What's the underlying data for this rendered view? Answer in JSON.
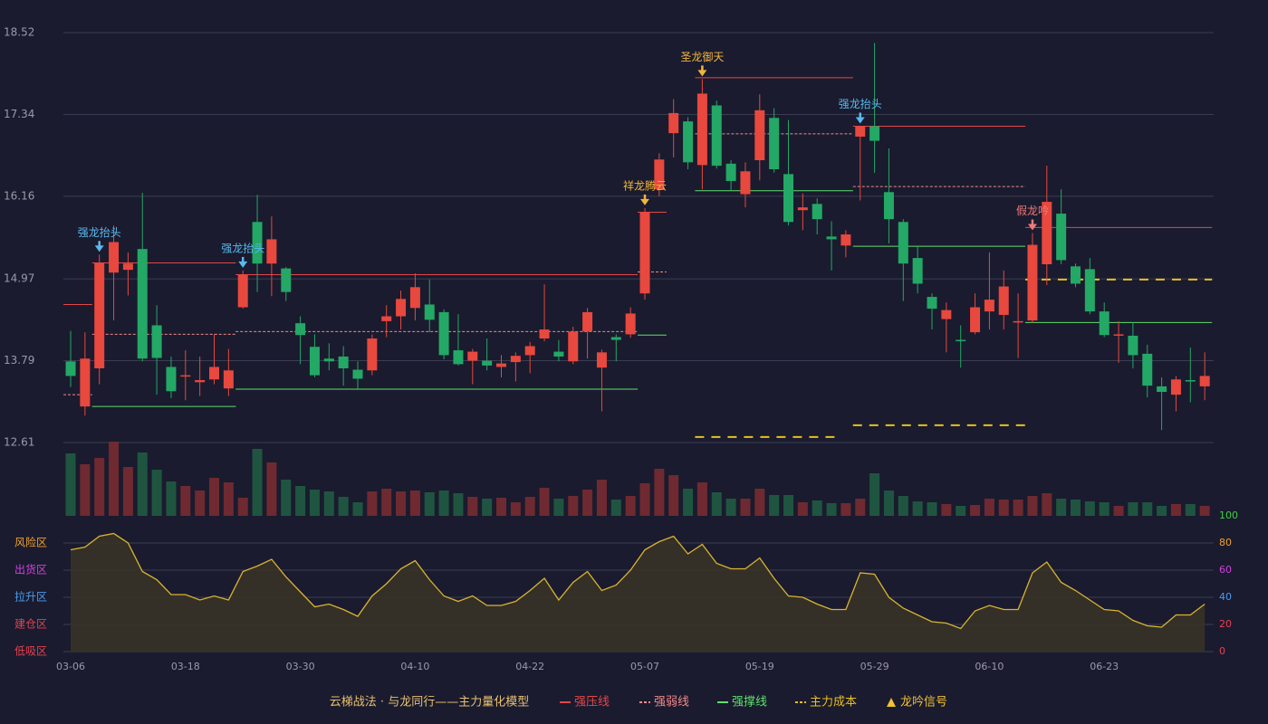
{
  "chart_data": [
    {
      "type": "candlestick",
      "x": [
        "03-06",
        null,
        null,
        null,
        null,
        null,
        null,
        null,
        "03-18",
        null,
        null,
        null,
        null,
        null,
        null,
        null,
        "03-30",
        null,
        null,
        null,
        null,
        null,
        null,
        null,
        "04-10",
        null,
        null,
        null,
        null,
        null,
        null,
        null,
        "04-22",
        null,
        null,
        null,
        null,
        null,
        null,
        null,
        "05-07",
        null,
        null,
        null,
        null,
        null,
        null,
        null,
        "05-19",
        null,
        null,
        null,
        null,
        null,
        null,
        null,
        "05-29",
        null,
        null,
        null,
        null,
        null,
        null,
        null,
        "06-10",
        null,
        null,
        null,
        null,
        null,
        null,
        null,
        "06-23",
        null,
        null,
        null,
        null,
        null,
        null,
        null
      ],
      "open": [
        13.78,
        13.13,
        13.68,
        15.06,
        15.1,
        15.4,
        14.3,
        13.7,
        13.57,
        13.48,
        13.52,
        13.39,
        14.56,
        15.79,
        15.19,
        15.12,
        14.33,
        13.99,
        13.82,
        13.85,
        13.66,
        13.65,
        14.36,
        14.43,
        14.55,
        14.6,
        14.49,
        13.94,
        13.79,
        13.79,
        13.7,
        13.77,
        13.87,
        14.11,
        13.92,
        13.78,
        14.21,
        13.69,
        14.13,
        14.17,
        14.76,
        16.26,
        17.07,
        17.24,
        16.61,
        17.47,
        16.63,
        16.19,
        16.68,
        17.29,
        16.48,
        15.96,
        16.05,
        15.58,
        15.45,
        17.02,
        17.17,
        16.22,
        15.79,
        15.27,
        14.71,
        14.39,
        14.09,
        14.2,
        14.5,
        14.45,
        14.34,
        14.37,
        15.18,
        15.91,
        15.15,
        15.11,
        14.5,
        14.16,
        14.15,
        13.89,
        13.42,
        13.3,
        13.51,
        13.42
      ],
      "high": [
        14.22,
        14.2,
        15.32,
        15.74,
        15.35,
        16.21,
        14.59,
        13.85,
        13.94,
        13.85,
        14.17,
        13.96,
        15.09,
        16.18,
        15.87,
        15.14,
        14.43,
        14.17,
        14.04,
        14.0,
        13.78,
        14.17,
        14.59,
        14.8,
        15.05,
        14.96,
        14.53,
        14.46,
        13.96,
        14.11,
        13.87,
        13.91,
        14.06,
        14.89,
        14.09,
        14.28,
        14.55,
        13.95,
        14.17,
        14.56,
        15.99,
        16.78,
        17.56,
        17.3,
        17.85,
        17.54,
        16.68,
        16.65,
        17.63,
        17.43,
        17.26,
        16.2,
        16.13,
        15.8,
        15.67,
        17.17,
        18.37,
        16.85,
        15.83,
        15.45,
        14.76,
        14.63,
        14.3,
        14.76,
        15.35,
        15.09,
        14.76,
        15.63,
        16.6,
        16.26,
        15.19,
        15.27,
        14.63,
        14.36,
        14.34,
        14.02,
        13.55,
        13.57,
        13.98,
        13.91
      ],
      "low": [
        13.41,
        13.0,
        13.45,
        14.37,
        14.73,
        13.78,
        13.3,
        13.25,
        13.22,
        13.28,
        13.45,
        13.28,
        14.54,
        14.78,
        14.72,
        14.65,
        13.74,
        13.55,
        13.65,
        13.43,
        13.39,
        13.58,
        14.13,
        14.24,
        14.37,
        14.2,
        13.81,
        13.72,
        13.45,
        13.65,
        13.55,
        13.49,
        13.61,
        14.07,
        13.78,
        13.74,
        13.82,
        13.06,
        13.78,
        14.12,
        14.67,
        16.16,
        16.72,
        16.55,
        16.26,
        16.56,
        16.23,
        16.0,
        16.39,
        16.5,
        15.74,
        15.67,
        15.61,
        15.09,
        15.28,
        16.1,
        16.5,
        15.48,
        14.65,
        14.76,
        14.24,
        13.91,
        13.69,
        14.17,
        14.24,
        14.24,
        13.83,
        14.33,
        14.88,
        15.18,
        14.85,
        14.46,
        14.13,
        13.76,
        13.68,
        13.26,
        12.79,
        13.06,
        13.19,
        13.22
      ],
      "close": [
        13.57,
        13.82,
        15.2,
        15.5,
        15.19,
        13.82,
        13.83,
        13.35,
        13.58,
        13.51,
        13.7,
        13.65,
        15.03,
        15.19,
        15.54,
        14.78,
        14.16,
        13.58,
        13.78,
        13.68,
        13.53,
        14.11,
        14.43,
        14.68,
        14.85,
        14.38,
        13.87,
        13.74,
        13.92,
        13.72,
        13.75,
        13.86,
        14.0,
        14.24,
        13.85,
        14.21,
        14.49,
        13.91,
        14.09,
        14.47,
        15.93,
        16.69,
        17.36,
        16.65,
        17.64,
        16.6,
        16.38,
        16.52,
        17.4,
        16.55,
        15.79,
        16.0,
        15.83,
        15.54,
        15.61,
        17.17,
        16.96,
        15.83,
        15.19,
        14.9,
        14.54,
        14.52,
        14.08,
        14.56,
        14.67,
        14.86,
        14.36,
        15.46,
        16.08,
        15.24,
        14.9,
        14.5,
        14.16,
        14.17,
        13.87,
        13.43,
        13.34,
        13.52,
        13.49,
        13.57
      ],
      "ylim": [
        12.61,
        18.52
      ],
      "yticks": [
        12.61,
        13.79,
        14.97,
        16.16,
        17.34,
        18.52
      ],
      "grid": true,
      "up_color": "#e8483e",
      "down_color": "#23a866",
      "title": "云梯战法 · 与龙同行——主力量化模型",
      "lines": [
        {
          "name": "强压线",
          "color": "#e0484a",
          "dashed": false,
          "segments": [
            {
              "from": 0,
              "to": 1,
              "value": 14.6
            },
            {
              "from": 2,
              "to": 11,
              "value": 15.2
            },
            {
              "from": 12,
              "to": 39,
              "value": 15.03
            },
            {
              "from": 40,
              "to": 41,
              "value": 15.93
            },
            {
              "from": 44,
              "to": 54,
              "value": 17.87
            },
            {
              "from": 55,
              "to": 66,
              "value": 17.17
            },
            {
              "from": 67,
              "to": 79,
              "value": 15.71
            }
          ]
        },
        {
          "name": "强弱线",
          "color": "#f08a8a",
          "dashed": true,
          "segments": [
            {
              "from": 0,
              "to": 1,
              "value": 13.3
            },
            {
              "from": 2,
              "to": 11,
              "value": 14.17
            },
            {
              "from": 12,
              "to": 39,
              "value": 14.21
            },
            {
              "from": 40,
              "to": 41,
              "value": 15.07
            },
            {
              "from": 44,
              "to": 54,
              "value": 17.06
            },
            {
              "from": 55,
              "to": 66,
              "value": 16.3
            }
          ]
        },
        {
          "name": "强撑线",
          "color": "#5ee06a",
          "dashed": false,
          "segments": [
            {
              "from": 2,
              "to": 11,
              "value": 13.13
            },
            {
              "from": 12,
              "to": 39,
              "value": 13.38
            },
            {
              "from": 40,
              "to": 41,
              "value": 14.16
            },
            {
              "from": 44,
              "to": 54,
              "value": 16.24
            },
            {
              "from": 55,
              "to": 66,
              "value": 15.44
            },
            {
              "from": 67,
              "to": 79,
              "value": 14.34
            }
          ]
        },
        {
          "name": "主力成本",
          "color": "#e8c020",
          "dashed": true,
          "segments": [
            {
              "from": 44,
              "to": 53,
              "value": 12.69
            },
            {
              "from": 55,
              "to": 66,
              "value": 12.86
            },
            {
              "from": 67,
              "to": 79,
              "value": 14.96
            }
          ]
        }
      ],
      "signal_legend": {
        "name": "龙吟信号",
        "color": "#f2c230"
      },
      "signals": [
        {
          "at": 2,
          "text": "强龙抬头",
          "color": "#5ab8f0"
        },
        {
          "at": 12,
          "text": "强龙抬头",
          "color": "#5ab8f0"
        },
        {
          "at": 40,
          "text": "祥龙腾云",
          "color": "#f2b53a"
        },
        {
          "at": 44,
          "text": "圣龙御天",
          "color": "#f2b53a"
        },
        {
          "at": 55,
          "text": "强龙抬头",
          "color": "#5ab8f0"
        },
        {
          "at": 67,
          "text": "假龙吟",
          "color": "#f07a7a"
        }
      ]
    },
    {
      "type": "volume",
      "values": [
        69,
        57,
        64,
        82,
        54,
        70,
        51,
        38,
        33,
        28,
        42,
        37,
        20,
        74,
        59,
        40,
        33,
        29,
        27,
        21,
        15,
        27,
        30,
        27,
        28,
        26,
        28,
        25,
        21,
        19,
        20,
        15,
        21,
        31,
        19,
        22,
        29,
        40,
        18,
        22,
        36,
        52,
        45,
        30,
        37,
        26,
        19,
        19,
        30,
        23,
        23,
        15,
        17,
        14,
        14,
        19,
        47,
        28,
        22,
        16,
        15,
        13,
        11,
        12,
        19,
        18,
        18,
        22,
        25,
        19,
        18,
        16,
        15,
        11,
        15,
        15,
        11,
        13,
        13,
        11
      ],
      "up_color": "#6e2a30",
      "down_color": "#1f5540"
    },
    {
      "type": "area",
      "values": [
        75,
        77,
        85,
        87,
        80,
        59,
        53,
        42,
        42,
        38,
        41,
        38,
        59,
        63,
        68,
        55,
        44,
        33,
        35,
        31,
        26,
        41,
        50,
        61,
        67,
        53,
        41,
        37,
        41,
        34,
        34,
        37,
        45,
        54,
        38,
        51,
        59,
        45,
        49,
        60,
        75,
        81,
        85,
        72,
        79,
        65,
        61,
        61,
        69,
        54,
        41,
        40,
        35,
        31,
        31,
        58,
        57,
        40,
        32,
        27,
        22,
        21,
        17,
        30,
        34,
        31,
        31,
        58,
        66,
        51,
        45,
        38,
        31,
        30,
        23,
        19,
        18,
        27,
        27,
        35
      ],
      "color": "#d9b431",
      "ylim": [
        0,
        100
      ],
      "yticks": [
        0,
        20,
        40,
        60,
        80,
        100
      ],
      "ytick_colors": [
        "#e84050",
        "#e84050",
        "#4a9cf0",
        "#d040e0",
        "#f0a030",
        "#40d040"
      ],
      "zones": [
        {
          "label": "风险区",
          "value": 80,
          "color": "#f0a030"
        },
        {
          "label": "出货区",
          "value": 60,
          "color": "#d040e0"
        },
        {
          "label": "拉升区",
          "value": 40,
          "color": "#4a9cf0"
        },
        {
          "label": "建仓区",
          "value": 20,
          "color": "#e84050"
        },
        {
          "label": "低吸区",
          "value": 0,
          "color": "#e84050"
        }
      ]
    }
  ]
}
